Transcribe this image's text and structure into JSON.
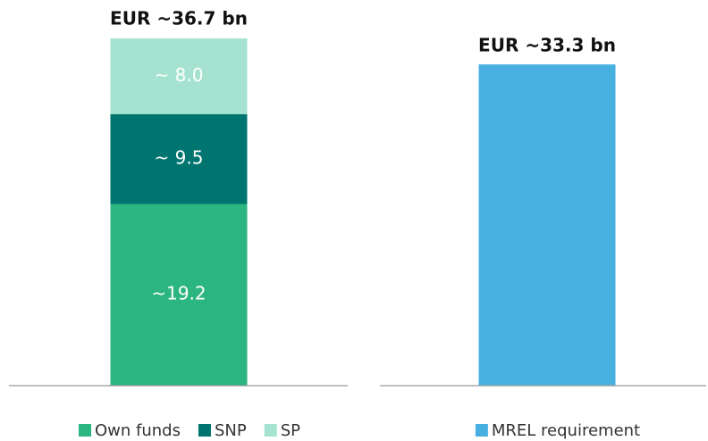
{
  "chart_data": [
    {
      "type": "stacked_bar",
      "annotation": "EUR ~36.7 bn",
      "categories": [
        null
      ],
      "series": [
        {
          "name": "Own funds",
          "color": "#2bb57f",
          "values": [
            19.2
          ],
          "value_labels": [
            "~19.2"
          ]
        },
        {
          "name": "SNP",
          "color": "#007570",
          "values": [
            9.5
          ],
          "value_labels": [
            "~ 9.5"
          ]
        },
        {
          "name": "SP",
          "color": "#a5e3d0",
          "values": [
            8.0
          ],
          "value_labels": [
            "~ 8.0"
          ]
        }
      ],
      "ylim": [
        0,
        36.7
      ]
    },
    {
      "type": "bar",
      "categories": [
        null
      ],
      "series": [
        {
          "name": "MREL requirement",
          "color": "#48b0e0",
          "values": [
            33.3
          ],
          "value_labels": [
            "EUR ~33.3 bn"
          ]
        }
      ],
      "ylim": [
        0,
        36
      ]
    }
  ]
}
